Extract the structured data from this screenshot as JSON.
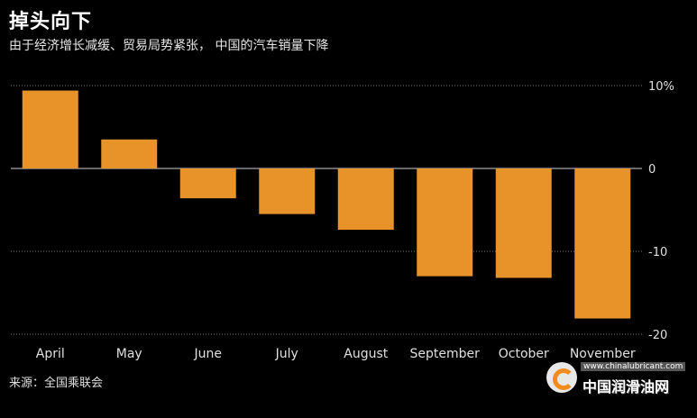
{
  "header": {
    "title": "掉头向下",
    "subtitle": "由于经济增长减缓、贸易局势紧张， 中国的汽车销量下降"
  },
  "chart_data": {
    "type": "bar",
    "categories": [
      "April",
      "May",
      "June",
      "July",
      "August",
      "September",
      "October",
      "November"
    ],
    "values": [
      9.4,
      3.5,
      -3.6,
      -5.5,
      -7.4,
      -13.0,
      -13.2,
      -18.1
    ],
    "ylim": [
      -20,
      10
    ],
    "yticks": [
      10,
      0,
      -10,
      -20
    ],
    "ytick_labels": [
      "10%",
      "0",
      "-10",
      "-20"
    ],
    "grid": true,
    "bar_color": "#e8922a"
  },
  "footer": {
    "source": "来源：全国乘联会"
  },
  "watermark": {
    "url": "www.chinalubricant.com",
    "name": "中国润滑油网"
  }
}
